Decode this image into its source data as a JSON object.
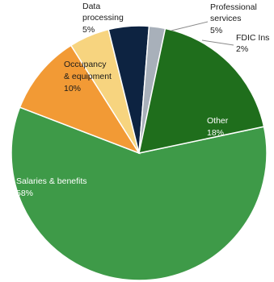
{
  "chart_data": {
    "type": "pie",
    "title": "",
    "slices": [
      {
        "label": "Salaries & benefits",
        "value": 58,
        "value_label": "58%",
        "color": "#3e9a48"
      },
      {
        "label": "Occupancy & equipment",
        "label_lines": [
          "Occupancy",
          "& equipment"
        ],
        "value": 10,
        "value_label": "10%",
        "color": "#f29a35"
      },
      {
        "label": "Data processing",
        "label_lines": [
          "Data",
          "processing"
        ],
        "value": 5,
        "value_label": "5%",
        "color": "#f7d47f"
      },
      {
        "label": "Professional services",
        "label_lines": [
          "Professional",
          "services"
        ],
        "value": 5,
        "value_label": "5%",
        "color": "#0d2341"
      },
      {
        "label": "FDIC Ins",
        "value": 2,
        "value_label": "2%",
        "color": "#a8b0ba"
      },
      {
        "label": "Other",
        "value": 18,
        "value_label": "18%",
        "color": "#1f6e1c"
      }
    ]
  }
}
